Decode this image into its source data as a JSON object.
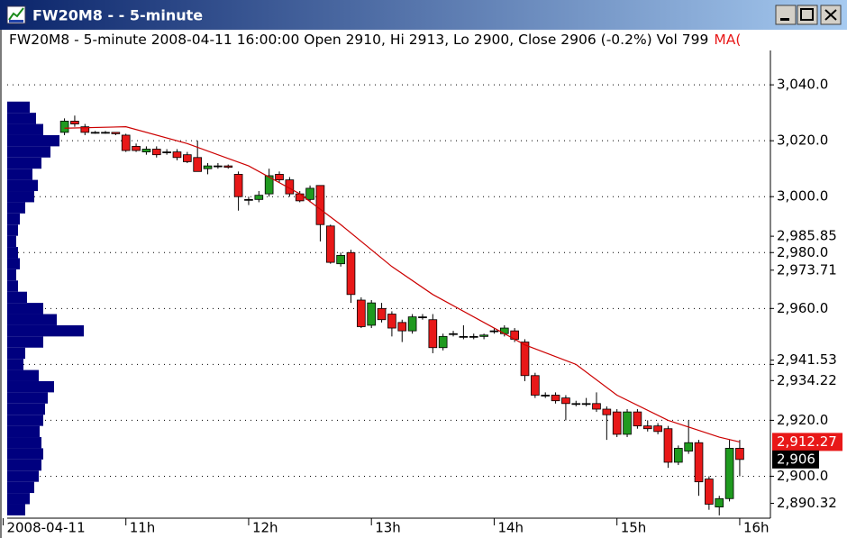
{
  "window": {
    "title": "FW20M8 -  - 5-minute"
  },
  "chart_data": {
    "type": "candlestick",
    "subtitle": "FW20M8 - 5-minute 2008-04-11 16:00:00 Open 2910, Hi 2913, Lo 2900, Close 2906 (-0.2%) Vol 799",
    "up_color": "#1f9a1f",
    "down_color": "#e81818",
    "x": [
      630,
      635,
      640,
      645,
      650,
      655,
      660,
      665,
      670,
      675,
      680,
      685,
      690,
      695,
      700,
      705,
      710,
      715,
      720,
      725,
      730,
      735,
      740,
      745,
      750,
      755,
      760,
      765,
      770,
      775,
      780,
      785,
      790,
      795,
      800,
      805,
      810,
      815,
      820,
      825,
      830,
      835,
      840,
      845,
      850,
      855,
      860,
      865,
      870,
      875,
      880,
      885,
      890,
      895,
      900,
      905,
      910,
      915,
      920,
      925,
      930,
      935,
      940,
      945,
      950,
      955,
      960
    ],
    "open": [
      3023,
      3027,
      3025,
      3023,
      3023,
      3023,
      3022,
      3018,
      3016,
      3017,
      3016,
      3016,
      3015,
      3014,
      3010,
      3011,
      3011,
      3008,
      2999,
      2999,
      3001,
      3008,
      3006,
      3001,
      2999,
      3004,
      2989.5,
      2976,
      2980,
      2963,
      2954,
      2960,
      2958,
      2955,
      2952,
      2957,
      2956,
      2946,
      2951,
      2950,
      2950,
      2950,
      2952,
      2951,
      2952,
      2948,
      2936,
      2929,
      2929,
      2928,
      2926,
      2926,
      2926,
      2924,
      2923,
      2915,
      2923,
      2918,
      2918,
      2917,
      2905,
      2909,
      2912,
      2899,
      2889,
      2892,
      2910
    ],
    "high": [
      3028,
      3029,
      3026,
      3023.5,
      3023.5,
      3023,
      3022.5,
      3019,
      3018,
      3018,
      3017,
      3017,
      3016,
      3020,
      3012,
      3012,
      3011.5,
      3009,
      3000,
      3002,
      3010,
      3009,
      3007,
      3002,
      3004,
      3004,
      2990,
      2980,
      2981,
      2964,
      2963,
      2962,
      2959,
      2956,
      2958,
      2958,
      2958,
      2951,
      2952,
      2954,
      2951,
      2951,
      2953,
      2954,
      2953,
      2949,
      2937,
      2930,
      2930,
      2929,
      2927,
      2928,
      2930,
      2925,
      2924,
      2924,
      2924,
      2920,
      2919,
      2918,
      2911,
      2920,
      2913,
      2900,
      2893,
      2913,
      2913
    ],
    "low": [
      3022,
      3025,
      3022,
      3022.5,
      3022.5,
      3022,
      3016,
      3016,
      3015,
      3014,
      3015,
      3013,
      3012,
      3009,
      3008,
      3010,
      3010,
      2995,
      2997,
      2998,
      3000,
      3005,
      3000,
      2998,
      2998,
      2984,
      2976,
      2975,
      2962,
      2953,
      2953,
      2955,
      2950,
      2948,
      2951,
      2956,
      2944,
      2945,
      2950,
      2949,
      2949,
      2949,
      2951,
      2950,
      2948,
      2934,
      2928,
      2928,
      2926,
      2920,
      2925,
      2925,
      2923,
      2913,
      2914,
      2914,
      2917,
      2916,
      2915,
      2903,
      2904,
      2908,
      2893,
      2888,
      2886,
      2891,
      2900
    ],
    "close": [
      3027,
      3026,
      3023,
      3023,
      3023,
      3022.5,
      3016.5,
      3016.5,
      3017,
      3015,
      3016,
      3014,
      3012.5,
      3009,
      3011,
      3011,
      3010.5,
      3000,
      2999,
      3000.5,
      3007.5,
      3006,
      3001,
      2998.5,
      3003,
      2990,
      2976.5,
      2979,
      2965,
      2953.5,
      2962,
      2956,
      2953,
      2952,
      2957,
      2957,
      2946,
      2950,
      2951,
      2950,
      2950,
      2950.5,
      2952,
      2953,
      2949,
      2936,
      2929,
      2929,
      2927,
      2926,
      2926,
      2926,
      2924,
      2922,
      2915,
      2923,
      2918,
      2917,
      2916,
      2905,
      2910,
      2912,
      2898,
      2890,
      2892,
      2910,
      2906
    ],
    "series": [
      {
        "name": "MA(",
        "color": "#cc0000",
        "x": [
          630,
          660,
          690,
          720,
          745,
          765,
          790,
          810,
          840,
          855,
          880,
          900,
          925,
          950,
          960
        ],
        "values": [
          3024.5,
          3025,
          3019,
          3011,
          3001,
          2990,
          2975,
          2965,
          2953,
          2947,
          2940,
          2929,
          2920,
          2914,
          2912.27
        ]
      }
    ],
    "volume_profile": {
      "color": "#00007f",
      "prices": [
        2888,
        2892,
        2896,
        2900,
        2904,
        2908,
        2912,
        2916,
        2920,
        2924,
        2928,
        2932,
        2936,
        2940,
        2944,
        2948,
        2952,
        2956,
        2960,
        2964,
        2968,
        2972,
        2976,
        2980,
        2984,
        2988,
        2992,
        2996,
        3000,
        3004,
        3008,
        3012,
        3016,
        3020,
        3024,
        3028,
        3032
      ],
      "values": [
        20,
        25,
        30,
        35,
        38,
        40,
        38,
        36,
        40,
        42,
        45,
        52,
        35,
        18,
        20,
        40,
        85,
        55,
        40,
        22,
        12,
        10,
        14,
        12,
        10,
        12,
        14,
        20,
        30,
        34,
        28,
        38,
        48,
        58,
        40,
        32,
        25
      ]
    },
    "xlim": [
      602,
      975
    ],
    "ylim": [
      2885,
      3051
    ],
    "xticks": [
      {
        "value": 600,
        "label": "2008-04-11"
      },
      {
        "value": 660,
        "label": "11h"
      },
      {
        "value": 720,
        "label": "12h"
      },
      {
        "value": 780,
        "label": "13h"
      },
      {
        "value": 840,
        "label": "14h"
      },
      {
        "value": 900,
        "label": "15h"
      },
      {
        "value": 960,
        "label": "16h"
      }
    ],
    "yticks": [
      {
        "value": 2900,
        "label": "2,900.0"
      },
      {
        "value": 2920,
        "label": "2,920.0"
      },
      {
        "value": 2940,
        "label": null
      },
      {
        "value": 2960,
        "label": "2,960.0"
      },
      {
        "value": 2980,
        "label": "2,980.0"
      },
      {
        "value": 3000,
        "label": "3,000.0"
      },
      {
        "value": 3020,
        "label": "3,020.0"
      },
      {
        "value": 3040,
        "label": "3,040.0"
      }
    ],
    "level_labels": [
      {
        "value": 2985.85,
        "label": "2,985.85"
      },
      {
        "value": 2973.71,
        "label": "2,973.71"
      },
      {
        "value": 2941.53,
        "label": "2,941.53"
      },
      {
        "value": 2934.22,
        "label": "2,934.22"
      },
      {
        "value": 2890.32,
        "label": "2,890.32"
      }
    ],
    "ma_last": {
      "value": 2912.27,
      "label": "2,912.27",
      "color": "#e81818"
    },
    "last_price": {
      "value": 2906,
      "label": "2,906",
      "color": "#000000"
    },
    "grid": true
  }
}
